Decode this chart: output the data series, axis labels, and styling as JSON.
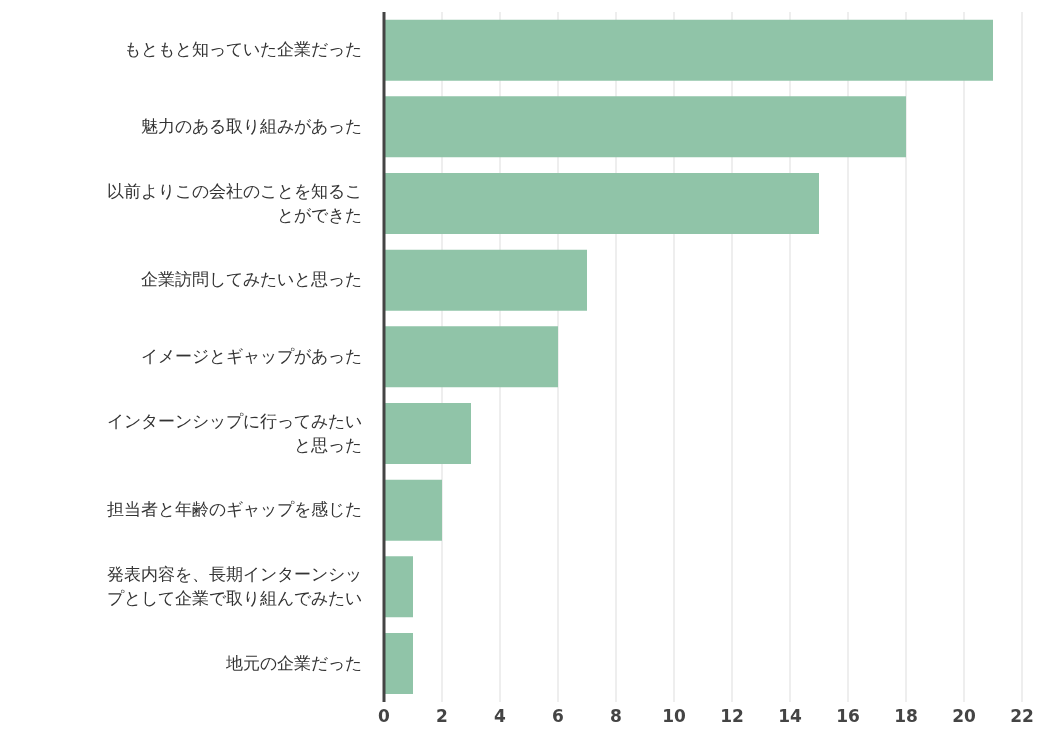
{
  "chart_data": {
    "type": "bar",
    "orientation": "horizontal",
    "categories": [
      "もともと知っていた企業だった",
      "魅力のある取り組みがあった",
      "以前よりこの会社のことを知ることができた",
      "企業訪問してみたいと思った",
      "イメージとギャップがあった",
      "インターンシップに行ってみたいと思った",
      "担当者と年齢のギャップを感じた",
      "発表内容を、長期インターンシップとして企業で取り組んでみたい",
      "地元の企業だった"
    ],
    "values": [
      21,
      18,
      15,
      7,
      6,
      3,
      2,
      1,
      1
    ],
    "color": "#90c4a8",
    "xlim": [
      0,
      22
    ],
    "xticks": [
      0,
      2,
      4,
      6,
      8,
      10,
      12,
      14,
      16,
      18,
      20,
      22
    ],
    "grid": "x",
    "legend": false
  }
}
